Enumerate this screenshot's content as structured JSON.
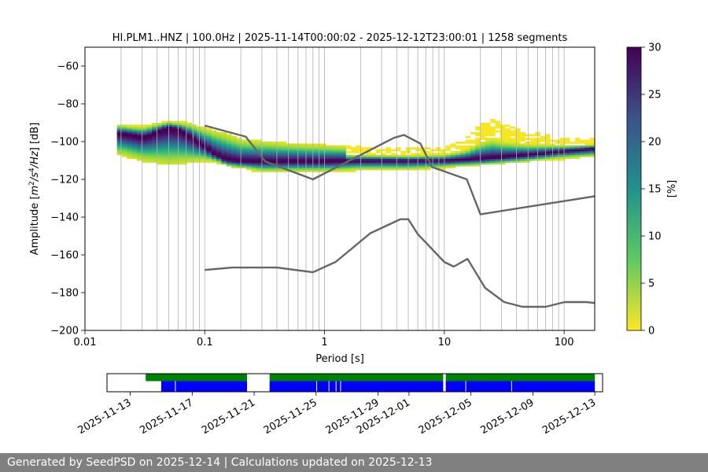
{
  "chart_data": [
    {
      "type": "heatmap",
      "title": "HI.PLM1..HNZ | 100.0Hz | 2025-11-14T00:00:02 - 2025-12-12T23:00:01 | 1258 segments",
      "xlabel": "Period [s]",
      "ylabel_parts": [
        "Amplitude [",
        "m",
        "2",
        "/s",
        "4",
        "/Hz",
        "] [dB]"
      ],
      "x_scale": "log",
      "xlim": [
        0.01,
        180
      ],
      "ylim": [
        -200,
        -50
      ],
      "x_ticks": [
        {
          "value": 0.01,
          "label": "0.01"
        },
        {
          "value": 0.1,
          "label": "0.1"
        },
        {
          "value": 1,
          "label": "1"
        },
        {
          "value": 10,
          "label": "10"
        },
        {
          "value": 100,
          "label": "100"
        }
      ],
      "y_ticks": [
        {
          "value": -60,
          "label": "−60"
        },
        {
          "value": -80,
          "label": "−80"
        },
        {
          "value": -100,
          "label": "−100"
        },
        {
          "value": -120,
          "label": "−120"
        },
        {
          "value": -140,
          "label": "−140"
        },
        {
          "value": -160,
          "label": "−160"
        },
        {
          "value": -180,
          "label": "−180"
        },
        {
          "value": -200,
          "label": "−200"
        }
      ],
      "grid": "x-minor-and-major",
      "colorbar": {
        "label": "[%]",
        "range": [
          0,
          30
        ],
        "ticks": [
          0,
          5,
          10,
          15,
          20,
          25,
          30
        ],
        "colormap": "viridis_r"
      },
      "mode_curve": {
        "x": [
          0.02,
          0.025,
          0.03,
          0.035,
          0.04,
          0.045,
          0.05,
          0.06,
          0.07,
          0.08,
          0.1,
          0.12,
          0.15,
          0.2,
          0.3,
          0.5,
          1,
          2,
          5,
          10,
          20,
          50,
          100,
          180
        ],
        "y": [
          -96,
          -97,
          -98,
          -97,
          -95,
          -94,
          -93,
          -94,
          -96,
          -99,
          -103,
          -107,
          -110,
          -111,
          -111,
          -111,
          -111,
          -110.5,
          -110.5,
          -110.5,
          -109.5,
          -107.5,
          -105.5,
          -104
        ]
      },
      "spread_upper": {
        "x": [
          0.02,
          0.03,
          0.05,
          0.07,
          0.1,
          0.15,
          0.2,
          0.3,
          0.5,
          1,
          2,
          5,
          10,
          15,
          20,
          25,
          30,
          50,
          100,
          180
        ],
        "y": [
          -92,
          -93,
          -90,
          -91,
          -94,
          -97,
          -100,
          -101,
          -102,
          -103,
          -104,
          -105,
          -104,
          -100,
          -92,
          -89,
          -92,
          -96,
          -99,
          -100
        ]
      },
      "spread_lower": {
        "x": [
          0.02,
          0.03,
          0.05,
          0.07,
          0.1,
          0.15,
          0.2,
          0.3,
          0.5,
          1,
          2,
          5,
          10,
          20,
          50,
          100,
          180
        ],
        "y": [
          -107,
          -110,
          -112,
          -111,
          -110,
          -112,
          -114,
          -116,
          -116,
          -116,
          -115,
          -115,
          -114,
          -112,
          -110,
          -109,
          -108
        ]
      },
      "noise_model_high": {
        "x": [
          0.1,
          0.22,
          0.32,
          0.8,
          3.8,
          4.6,
          6.3,
          7.9,
          15.4,
          20,
          354.8
        ],
        "y": [
          -91.5,
          -97.4,
          -110.5,
          -120,
          -98,
          -96.5,
          -101,
          -113.5,
          -120,
          -138.5,
          -126
        ]
      },
      "noise_model_low": {
        "x": [
          0.1,
          0.17,
          0.4,
          0.8,
          1.24,
          2.4,
          4.3,
          5,
          6,
          10,
          12,
          15.6,
          21.9,
          31.6,
          45,
          70,
          101,
          154,
          328
        ],
        "y": [
          -168,
          -166.7,
          -166.7,
          -169.2,
          -163.7,
          -148.6,
          -141.1,
          -141.1,
          -149,
          -163.8,
          -166.2,
          -162.1,
          -177.5,
          -185,
          -187.5,
          -187.5,
          -185,
          -185,
          -187.5
        ]
      }
    },
    {
      "type": "timeline",
      "x_tick_labels": [
        "2025-11-13",
        "2025-11-17",
        "2025-11-21",
        "2025-11-25",
        "2025-11-29",
        "2025-12-01",
        "2025-12-05",
        "2025-12-09",
        "2025-12-13"
      ],
      "x_tick_dates": [
        "2025-11-13",
        "2025-11-17",
        "2025-11-21",
        "2025-11-25",
        "2025-11-29",
        "2025-12-01",
        "2025-12-05",
        "2025-12-09",
        "2025-12-13"
      ],
      "xlim": [
        "2025-11-11T12:00",
        "2025-12-13T12:00"
      ],
      "data_available": {
        "color": "#008000",
        "spans": [
          [
            "2025-11-14T00:00",
            "2025-11-20T13:00"
          ],
          [
            "2025-11-22T00:00",
            "2025-12-03T05:00"
          ],
          [
            "2025-12-03T09:00",
            "2025-12-13T00:00"
          ]
        ]
      },
      "psd_segments": {
        "color": "#0000ff",
        "spans": [
          [
            "2025-11-15T00:00",
            "2025-11-20T13:00"
          ],
          [
            "2025-11-22T00:00",
            "2025-12-03T05:00"
          ],
          [
            "2025-12-03T09:00",
            "2025-12-13T00:00"
          ]
        ],
        "gaps": [
          "2025-11-15T22:00",
          "2025-11-25T01:00",
          "2025-11-25T20:00",
          "2025-11-26T07:00",
          "2025-11-26T14:00",
          "2025-12-04T16:00",
          "2025-12-07T15:00"
        ]
      }
    }
  ],
  "footer": {
    "text": "Generated by SeedPSD on 2025-12-14 | Calculations updated on 2025-12-13"
  }
}
